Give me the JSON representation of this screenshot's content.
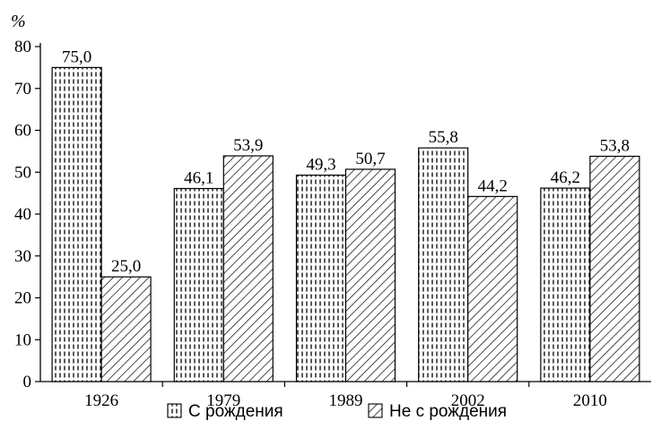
{
  "chart_data": {
    "type": "bar",
    "unit_label": "%",
    "categories": [
      "1926",
      "1979",
      "1989",
      "2002",
      "2010"
    ],
    "series": [
      {
        "name": "С рождения",
        "values": [
          75.0,
          46.1,
          49.3,
          55.8,
          46.2
        ],
        "value_labels": [
          "75,0",
          "46,1",
          "49,3",
          "55,8",
          "46,2"
        ],
        "pattern": "dashed-vertical"
      },
      {
        "name": "Не с рождения",
        "values": [
          25.0,
          53.9,
          50.7,
          44.2,
          53.8
        ],
        "value_labels": [
          "25,0",
          "53,9",
          "50,7",
          "44,2",
          "53,8"
        ],
        "pattern": "diagonal-hatch"
      }
    ],
    "ylim": [
      0,
      80
    ],
    "yticks": [
      "0",
      "10",
      "20",
      "30",
      "40",
      "50",
      "60",
      "70",
      "80"
    ],
    "grid": false,
    "legend_position": "bottom",
    "colors": {
      "stroke": "#000000",
      "fill": "#ffffff"
    }
  }
}
